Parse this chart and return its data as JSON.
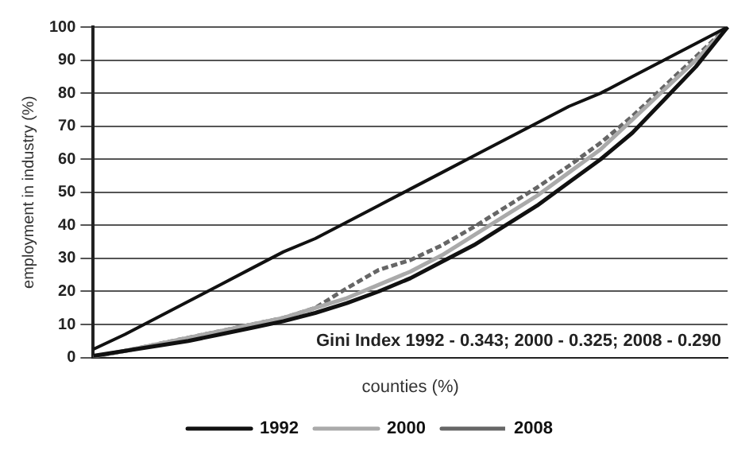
{
  "chart_data": {
    "type": "line",
    "xlabel": "counties (%)",
    "ylabel": "employment in industry (%)",
    "categories": [
      null,
      null,
      null,
      null,
      null,
      null,
      null,
      null,
      null,
      null,
      null,
      null,
      null,
      null,
      null,
      null,
      null,
      null,
      null,
      null,
      null
    ],
    "ylim": [
      0,
      100
    ],
    "yticks": [
      0,
      10,
      20,
      30,
      40,
      50,
      60,
      70,
      80,
      90,
      100
    ],
    "grid": "y",
    "legend": "bottom",
    "marker": "none",
    "annotations": [
      "Gini Index 1992 - 0.343; 2000 - 0.325; 2008 - 0.290"
    ],
    "series": [
      {
        "color": "#111111",
        "values": [
          2.5,
          7,
          12,
          17,
          22,
          27,
          32,
          36,
          41,
          46,
          51,
          56,
          61,
          66,
          71,
          76,
          80,
          85,
          90,
          95,
          100
        ]
      },
      {
        "name": "1992",
        "color": "#111111",
        "values": [
          0.5,
          2,
          3.5,
          5,
          7,
          9,
          11,
          13.5,
          16.5,
          20,
          24,
          29,
          34,
          40,
          46,
          53,
          60,
          68,
          78,
          88,
          100
        ]
      },
      {
        "name": "2000",
        "color": "#aaaaaa",
        "values": [
          0.3,
          2,
          4,
          6,
          8,
          10,
          12,
          15,
          18,
          22,
          26,
          31,
          37,
          43,
          49,
          56,
          63,
          72,
          81,
          90,
          100
        ]
      },
      {
        "name": "2008",
        "color": "#666666",
        "line_style": "dashed",
        "values": [
          0.2,
          2,
          4,
          6,
          8,
          10,
          12,
          15,
          21,
          26.5,
          29.5,
          34,
          39.5,
          45.5,
          51.5,
          58,
          65,
          73,
          82,
          91,
          100
        ]
      }
    ]
  }
}
